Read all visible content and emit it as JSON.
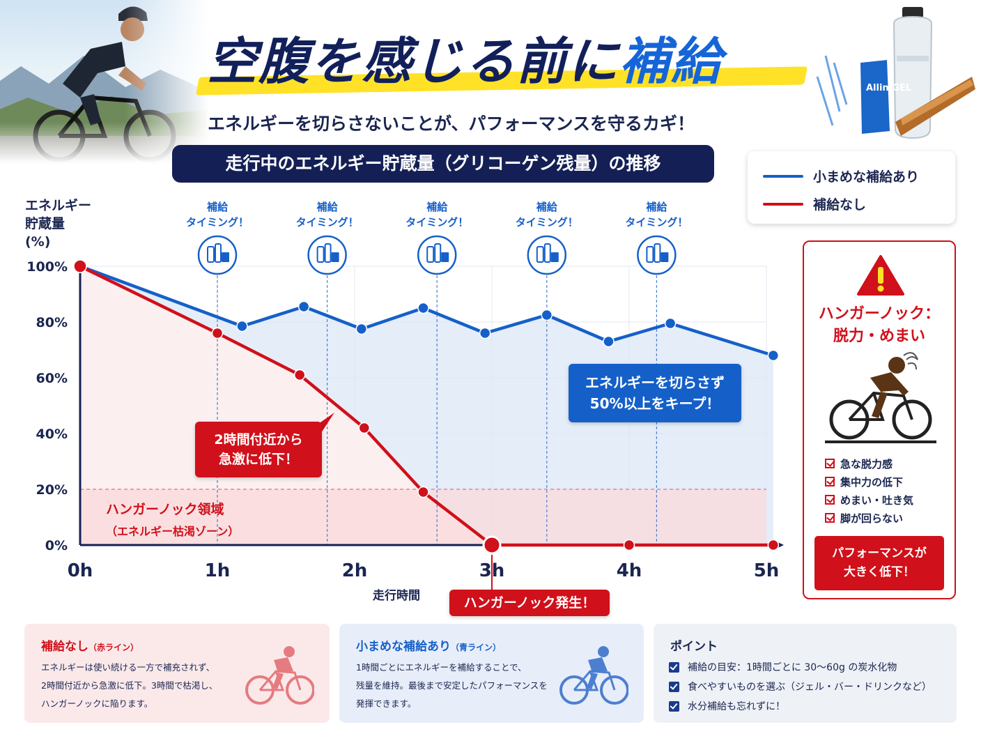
{
  "header": {
    "title_main": "空腹を感じる前に",
    "title_accent": "補給",
    "subtitle": "エネルギーを切らさないことが、パフォーマンスを守るカギ！",
    "product_label": "Allin GEL"
  },
  "chart_title": "走行中のエネルギー貯蔵量（グリコーゲン残量）の推移",
  "legend": {
    "blue_label": "小まめな補給あり",
    "red_label": "補給なし"
  },
  "colors": {
    "blue": "#1560c8",
    "red": "#d0101a",
    "navy": "#142055",
    "yellow": "#ffe227"
  },
  "chart_data": {
    "type": "line",
    "ylabel": "エネルギー\n貯蔵量\n(%)",
    "xlabel": "走行時間",
    "ylim": [
      0,
      100
    ],
    "xlim": [
      0,
      5
    ],
    "y_ticks": [
      "0%",
      "20%",
      "40%",
      "60%",
      "80%",
      "100%"
    ],
    "x_ticks": [
      "0h",
      "1h",
      "2h",
      "3h",
      "4h",
      "5h"
    ],
    "grid": true,
    "series": [
      {
        "name": "小まめな補給あり",
        "color": "#1560c8",
        "points": [
          [
            0,
            100
          ],
          [
            1.18,
            78.5
          ],
          [
            1.63,
            85.5
          ],
          [
            2.05,
            77.5
          ],
          [
            2.5,
            85
          ],
          [
            2.95,
            76
          ],
          [
            3.4,
            82.5
          ],
          [
            3.85,
            73
          ],
          [
            4.3,
            79.5
          ],
          [
            5.05,
            68
          ]
        ]
      },
      {
        "name": "補給なし",
        "color": "#d0101a",
        "points": [
          [
            0,
            100
          ],
          [
            1.0,
            76
          ],
          [
            1.6,
            61
          ],
          [
            2.07,
            42
          ],
          [
            2.5,
            19
          ],
          [
            3.0,
            0
          ],
          [
            4.0,
            0
          ],
          [
            5.05,
            0
          ]
        ]
      }
    ],
    "refuel_timings": [
      1.0,
      1.8,
      2.6,
      3.4,
      4.2
    ],
    "refuel_label_1": "補給",
    "refuel_label_2": "タイミング！",
    "threshold": 20,
    "zone_label": "ハンガーノック領域",
    "zone_sublabel": "（エネルギー枯渇ゾーン）",
    "annotations": {
      "red_line1": "2時間付近から",
      "red_line2": "急激に低下！",
      "blue_line1": "エネルギーを切らさず",
      "blue_line2": "50%以上をキープ！",
      "hunger_event": "ハンガーノック発生！"
    }
  },
  "warning": {
    "title_line1": "ハンガーノック：",
    "title_line2": "脱力・めまい",
    "items": [
      "急な脱力感",
      "集中力の低下",
      "めまい・吐き気",
      "脚が回らない"
    ],
    "button_line1": "パフォーマンスが",
    "button_line2": "大きく低下！"
  },
  "cards": {
    "red": {
      "title": "補給なし",
      "title_note": "（赤ライン）",
      "lines": [
        "エネルギーは使い続ける一方で補充されず、",
        "2時間付近から急激に低下。3時間で枯渇し、",
        "ハンガーノックに陥ります。"
      ]
    },
    "blue": {
      "title": "小まめな補給あり",
      "title_note": "（青ライン）",
      "lines": [
        "1時間ごとにエネルギーを補給することで、",
        "残量を維持。最後まで安定したパフォーマンスを",
        "発揮できます。"
      ]
    },
    "points": {
      "title": "ポイント",
      "items": [
        "補給の目安：1時間ごとに 30〜60g の炭水化物",
        "食べやすいものを選ぶ（ジェル・バー・ドリンクなど）",
        "水分補給も忘れずに！"
      ]
    }
  }
}
